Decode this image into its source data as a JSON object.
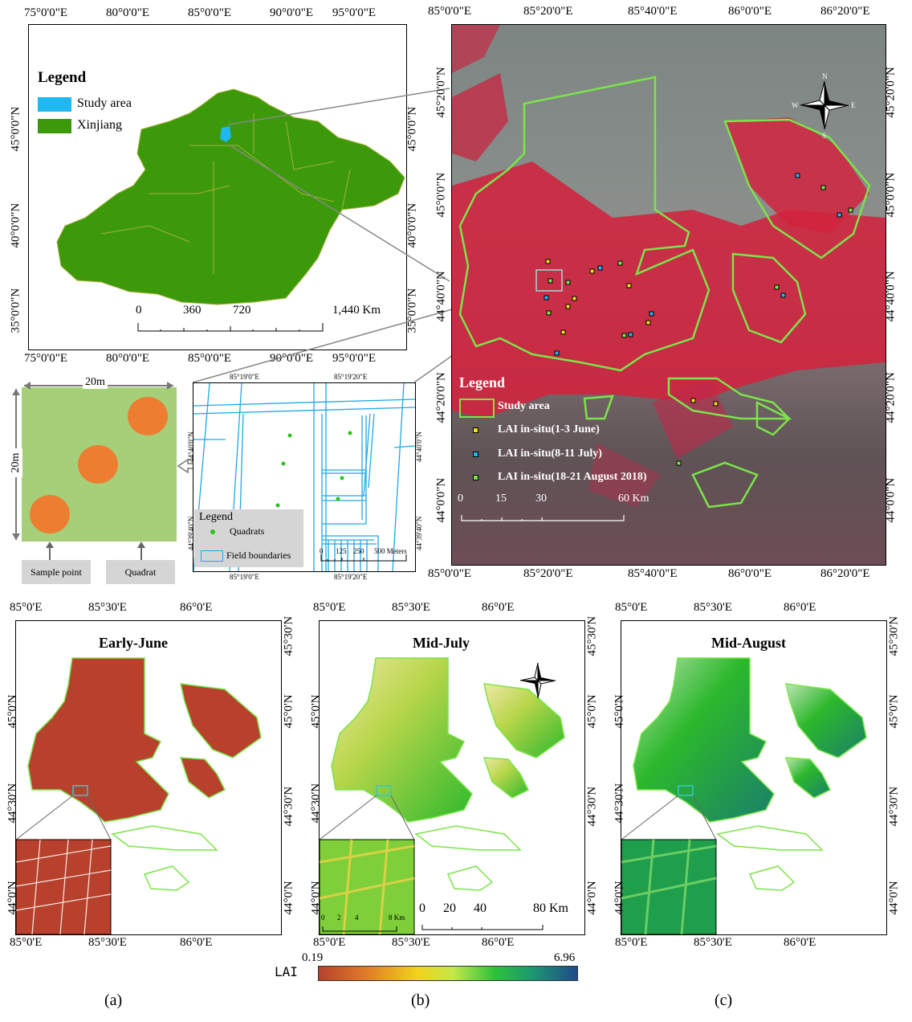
{
  "xinjiang_map": {
    "top_lon_labels": [
      "75°0'0\"E",
      "80°0'0\"E",
      "85°0'0\"E",
      "90°0'0\"E",
      "95°0'0\"E"
    ],
    "bottom_lon_labels": [
      "75°0'0\"E",
      "80°0'0\"E",
      "85°0'0\"E",
      "90°0'0\"E",
      "95°0'0\"E"
    ],
    "lat_labels": [
      "45°0'0\"N",
      "40°0'0\"N",
      "35°0'0\"N"
    ],
    "right_lat_labels": [
      "45°0'0\"N",
      "40°0'0\"N",
      "35°0'0\"N"
    ],
    "legend_title": "Legend",
    "legend_study_area": "Study area",
    "legend_xinjiang": "Xinjiang",
    "scale_labels": [
      "0",
      "360",
      "720",
      "1,440 Km"
    ],
    "colors": {
      "study_area": "#1fb8f0",
      "xinjiang": "#3c9a0a"
    }
  },
  "quadrat_diagram": {
    "width_label": "20m",
    "height_label": "20m",
    "sample_point_label": "Sample point",
    "quadrat_label": "Quadrat"
  },
  "field_map": {
    "top_lon": [
      "85°19'0\"E",
      "85°19'20\"E"
    ],
    "bottom_lon": [
      "85°19'0\"E",
      "85°19'20\"E"
    ],
    "left_lat": [
      "44°40'0\"N",
      "44°39'40\"N"
    ],
    "right_lat": [
      "44°40'0\"N",
      "44°39'40\"N"
    ],
    "legend_title": "Legend",
    "legend_quadrats": "Quadrats",
    "legend_field_boundaries": "Field boundaries",
    "scale_labels": [
      "0",
      "125",
      "250",
      "500 Meters"
    ]
  },
  "study_area_map": {
    "top_lon_labels": [
      "85°0'0\"E",
      "85°20'0\"E",
      "85°40'0\"E",
      "86°0'0\"E",
      "86°20'0\"E"
    ],
    "bottom_lon_labels": [
      "85°0'0\"E",
      "85°20'0\"E",
      "85°40'0\"E",
      "86°0'0\"E",
      "86°20'0\"E"
    ],
    "left_lat_labels": [
      "45°20'0\"N",
      "45°0'0\"N",
      "44°40'0\"N",
      "44°20'0\"N",
      "44°0'0\"N"
    ],
    "right_lat_labels": [
      "45°20'0\"N",
      "45°0'0\"N",
      "44°40'0\"N",
      "44°20'0\"N",
      "44°0'0\"N"
    ],
    "legend_title": "Legend",
    "legend_study_area": "Study area",
    "legend_june": "LAI in-situ(1-3 June)",
    "legend_july": "LAI in-situ(8-11 July)",
    "legend_august": "LAI in-situ(18-21 August 2018)",
    "scale_labels": [
      "0",
      "15",
      "30",
      "60 Km"
    ],
    "compass": {
      "n": "N",
      "s": "S",
      "e": "E",
      "w": "W"
    }
  },
  "lai_maps": [
    {
      "title": "Early-June",
      "label": "(a)",
      "top_lon": [
        "85°0'E",
        "85°30'E",
        "86°0'E"
      ],
      "bottom_lon": [
        "85°0'E",
        "85°30'E",
        "86°0'E"
      ],
      "lat": [
        "45°0'N",
        "44°30'N",
        "44°0'N"
      ]
    },
    {
      "title": "Mid-July",
      "label": "(b)",
      "top_lon": [
        "85°0'E",
        "85°30'E",
        "86°0'E"
      ],
      "bottom_lon": [
        "85°0'E",
        "85°30'E",
        "86°0'E"
      ],
      "lat": [
        "45°0'N",
        "44°30'N",
        "44°0'N"
      ]
    },
    {
      "title": "Mid-August",
      "label": "(c)",
      "top_lon": [
        "85°0'E",
        "85°30'E",
        "86°0'E"
      ],
      "bottom_lon": [
        "85°0'E",
        "85°30'E",
        "86°0'E"
      ],
      "lat": [
        "45°0'N",
        "44°30'N",
        "44°0'N"
      ]
    }
  ],
  "right_lat_labels_lai": [
    "45°30'N",
    "45°0'N",
    "44°30'N",
    "44°0'N"
  ],
  "lai_scale_bar": [
    "0",
    "20",
    "40",
    "80 Km"
  ],
  "inset_scale_bar": [
    "0",
    "2",
    "4",
    "8 Km"
  ],
  "colorbar": {
    "label": "LAI",
    "min": "0.19",
    "max": "6.96"
  }
}
